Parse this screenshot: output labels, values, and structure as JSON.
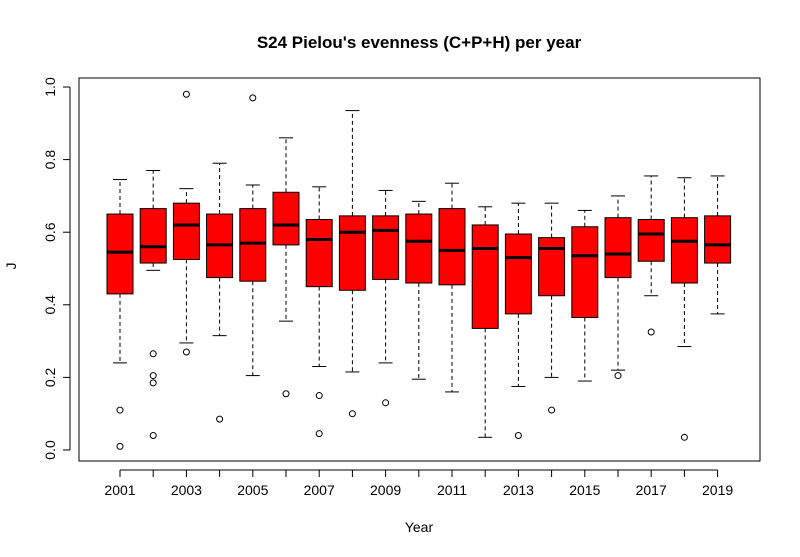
{
  "chart_data": {
    "type": "boxplot",
    "title": "S24 Pielou's evenness (C+P+H) per year",
    "xlabel": "Year",
    "ylabel": "J",
    "ylim": [
      0,
      1
    ],
    "yticks": [
      "0.0",
      "0.2",
      "0.4",
      "0.6",
      "0.8",
      "1.0"
    ],
    "xtick_labels": [
      "2001",
      "2003",
      "2005",
      "2007",
      "2009",
      "2011",
      "2013",
      "2015",
      "2017",
      "2019"
    ],
    "box_color": "#ff0000",
    "categories": [
      "2001",
      "2002",
      "2003",
      "2004",
      "2005",
      "2006",
      "2007",
      "2008",
      "2009",
      "2010",
      "2011",
      "2012",
      "2013",
      "2014",
      "2015",
      "2016",
      "2017",
      "2018",
      "2019"
    ],
    "boxes": [
      {
        "year": "2001",
        "whisker_low": 0.24,
        "q1": 0.43,
        "median": 0.545,
        "q3": 0.65,
        "whisker_high": 0.745,
        "outliers": [
          0.11,
          0.01
        ]
      },
      {
        "year": "2002",
        "whisker_low": 0.495,
        "q1": 0.515,
        "median": 0.56,
        "q3": 0.665,
        "whisker_high": 0.77,
        "outliers": [
          0.265,
          0.205,
          0.185,
          0.04
        ]
      },
      {
        "year": "2003",
        "whisker_low": 0.295,
        "q1": 0.525,
        "median": 0.62,
        "q3": 0.68,
        "whisker_high": 0.72,
        "outliers": [
          0.98,
          0.27
        ]
      },
      {
        "year": "2004",
        "whisker_low": 0.315,
        "q1": 0.475,
        "median": 0.565,
        "q3": 0.65,
        "whisker_high": 0.79,
        "outliers": [
          0.085
        ]
      },
      {
        "year": "2005",
        "whisker_low": 0.205,
        "q1": 0.465,
        "median": 0.57,
        "q3": 0.665,
        "whisker_high": 0.73,
        "outliers": [
          0.97
        ]
      },
      {
        "year": "2006",
        "whisker_low": 0.355,
        "q1": 0.565,
        "median": 0.62,
        "q3": 0.71,
        "whisker_high": 0.86,
        "outliers": [
          0.155
        ]
      },
      {
        "year": "2007",
        "whisker_low": 0.23,
        "q1": 0.45,
        "median": 0.58,
        "q3": 0.635,
        "whisker_high": 0.725,
        "outliers": [
          0.15,
          0.045
        ]
      },
      {
        "year": "2008",
        "whisker_low": 0.215,
        "q1": 0.44,
        "median": 0.6,
        "q3": 0.645,
        "whisker_high": 0.935,
        "outliers": [
          0.1
        ]
      },
      {
        "year": "2009",
        "whisker_low": 0.24,
        "q1": 0.47,
        "median": 0.605,
        "q3": 0.645,
        "whisker_high": 0.715,
        "outliers": [
          0.13
        ]
      },
      {
        "year": "2010",
        "whisker_low": 0.195,
        "q1": 0.46,
        "median": 0.575,
        "q3": 0.65,
        "whisker_high": 0.685,
        "outliers": []
      },
      {
        "year": "2011",
        "whisker_low": 0.16,
        "q1": 0.455,
        "median": 0.55,
        "q3": 0.665,
        "whisker_high": 0.735,
        "outliers": []
      },
      {
        "year": "2012",
        "whisker_low": 0.035,
        "q1": 0.335,
        "median": 0.555,
        "q3": 0.62,
        "whisker_high": 0.67,
        "outliers": []
      },
      {
        "year": "2013",
        "whisker_low": 0.175,
        "q1": 0.375,
        "median": 0.53,
        "q3": 0.595,
        "whisker_high": 0.68,
        "outliers": [
          0.04
        ]
      },
      {
        "year": "2014",
        "whisker_low": 0.2,
        "q1": 0.425,
        "median": 0.555,
        "q3": 0.585,
        "whisker_high": 0.68,
        "outliers": [
          0.11
        ]
      },
      {
        "year": "2015",
        "whisker_low": 0.19,
        "q1": 0.365,
        "median": 0.535,
        "q3": 0.615,
        "whisker_high": 0.66,
        "outliers": []
      },
      {
        "year": "2016",
        "whisker_low": 0.22,
        "q1": 0.475,
        "median": 0.54,
        "q3": 0.64,
        "whisker_high": 0.7,
        "outliers": [
          0.205
        ]
      },
      {
        "year": "2017",
        "whisker_low": 0.425,
        "q1": 0.52,
        "median": 0.595,
        "q3": 0.635,
        "whisker_high": 0.755,
        "outliers": [
          0.325
        ]
      },
      {
        "year": "2018",
        "whisker_low": 0.285,
        "q1": 0.46,
        "median": 0.575,
        "q3": 0.64,
        "whisker_high": 0.75,
        "outliers": [
          0.035
        ]
      },
      {
        "year": "2019",
        "whisker_low": 0.375,
        "q1": 0.515,
        "median": 0.565,
        "q3": 0.645,
        "whisker_high": 0.755,
        "outliers": []
      }
    ]
  }
}
